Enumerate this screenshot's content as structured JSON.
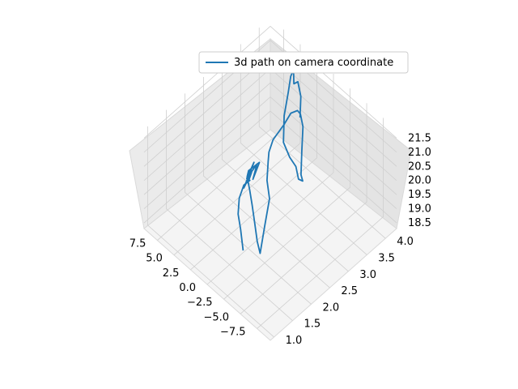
{
  "chart_data": {
    "type": "line3d",
    "title": "",
    "legend": {
      "placement": "upper-center",
      "entries": [
        {
          "label": "3d path on camera coordinate",
          "color": "#1f77b4"
        }
      ]
    },
    "axes": {
      "x": {
        "label": "",
        "ticks": [
          "−7.5",
          "−5.0",
          "−2.5",
          "0.0",
          "2.5",
          "5.0",
          "7.5"
        ],
        "range": [
          -9.5,
          9.5
        ]
      },
      "y": {
        "label": "",
        "ticks": [
          "1.0",
          "1.5",
          "2.0",
          "2.5",
          "3.0",
          "3.5",
          "4.0"
        ],
        "range": [
          0.9,
          4.3
        ]
      },
      "z": {
        "label": "",
        "ticks": [
          "18.5",
          "19.0",
          "19.5",
          "20.0",
          "20.5",
          "21.0",
          "21.5"
        ],
        "range": [
          18.3,
          21.8
        ]
      }
    },
    "grid": true,
    "pane_color": "#f2f2f2",
    "series": [
      {
        "name": "3d path on camera coordinate",
        "color": "#1f77b4",
        "points": [
          [
            -1.5,
            1.6,
            19.0
          ],
          [
            0.0,
            1.8,
            19.2
          ],
          [
            1.5,
            2.0,
            19.2
          ],
          [
            3.0,
            2.3,
            19.1
          ],
          [
            4.0,
            2.6,
            19.0
          ],
          [
            4.2,
            2.8,
            18.9
          ],
          [
            3.8,
            2.7,
            19.1
          ],
          [
            4.5,
            2.9,
            19.0
          ],
          [
            4.0,
            2.6,
            18.9
          ],
          [
            4.7,
            3.0,
            19.2
          ],
          [
            4.1,
            2.7,
            19.1
          ],
          [
            4.8,
            3.1,
            19.0
          ],
          [
            4.3,
            2.9,
            18.8
          ],
          [
            5.0,
            3.2,
            18.9
          ],
          [
            4.4,
            2.8,
            19.2
          ],
          [
            3.5,
            2.6,
            19.4
          ],
          [
            2.0,
            2.4,
            19.5
          ],
          [
            0.5,
            2.2,
            19.5
          ],
          [
            -1.0,
            2.0,
            19.4
          ],
          [
            -2.5,
            1.8,
            19.3
          ],
          [
            -3.5,
            1.7,
            19.2
          ],
          [
            -2.5,
            2.0,
            19.6
          ],
          [
            -1.0,
            2.4,
            19.8
          ],
          [
            0.5,
            2.6,
            19.9
          ],
          [
            2.0,
            2.9,
            19.9
          ],
          [
            3.0,
            3.1,
            19.8
          ],
          [
            3.5,
            3.3,
            19.9
          ],
          [
            3.0,
            3.5,
            20.3
          ],
          [
            2.5,
            3.6,
            20.7
          ],
          [
            1.5,
            3.6,
            21.0
          ],
          [
            0.5,
            3.5,
            21.2
          ],
          [
            -1.0,
            3.3,
            21.3
          ],
          [
            -2.5,
            3.0,
            21.1
          ],
          [
            -3.5,
            2.8,
            20.7
          ],
          [
            -3.2,
            2.9,
            20.3
          ],
          [
            -2.0,
            3.0,
            20.0
          ],
          [
            -0.5,
            3.2,
            19.9
          ],
          [
            1.0,
            3.3,
            19.8
          ],
          [
            2.5,
            3.4,
            19.9
          ],
          [
            3.5,
            3.6,
            20.4
          ],
          [
            4.0,
            3.8,
            20.9
          ],
          [
            4.2,
            3.9,
            21.3
          ],
          [
            3.8,
            3.9,
            21.6
          ],
          [
            3.2,
            3.8,
            21.7
          ],
          [
            2.6,
            3.7,
            21.6
          ],
          [
            2.0,
            3.7,
            21.8
          ],
          [
            1.0,
            3.6,
            21.6
          ],
          [
            0.0,
            3.4,
            21.3
          ]
        ]
      }
    ]
  }
}
